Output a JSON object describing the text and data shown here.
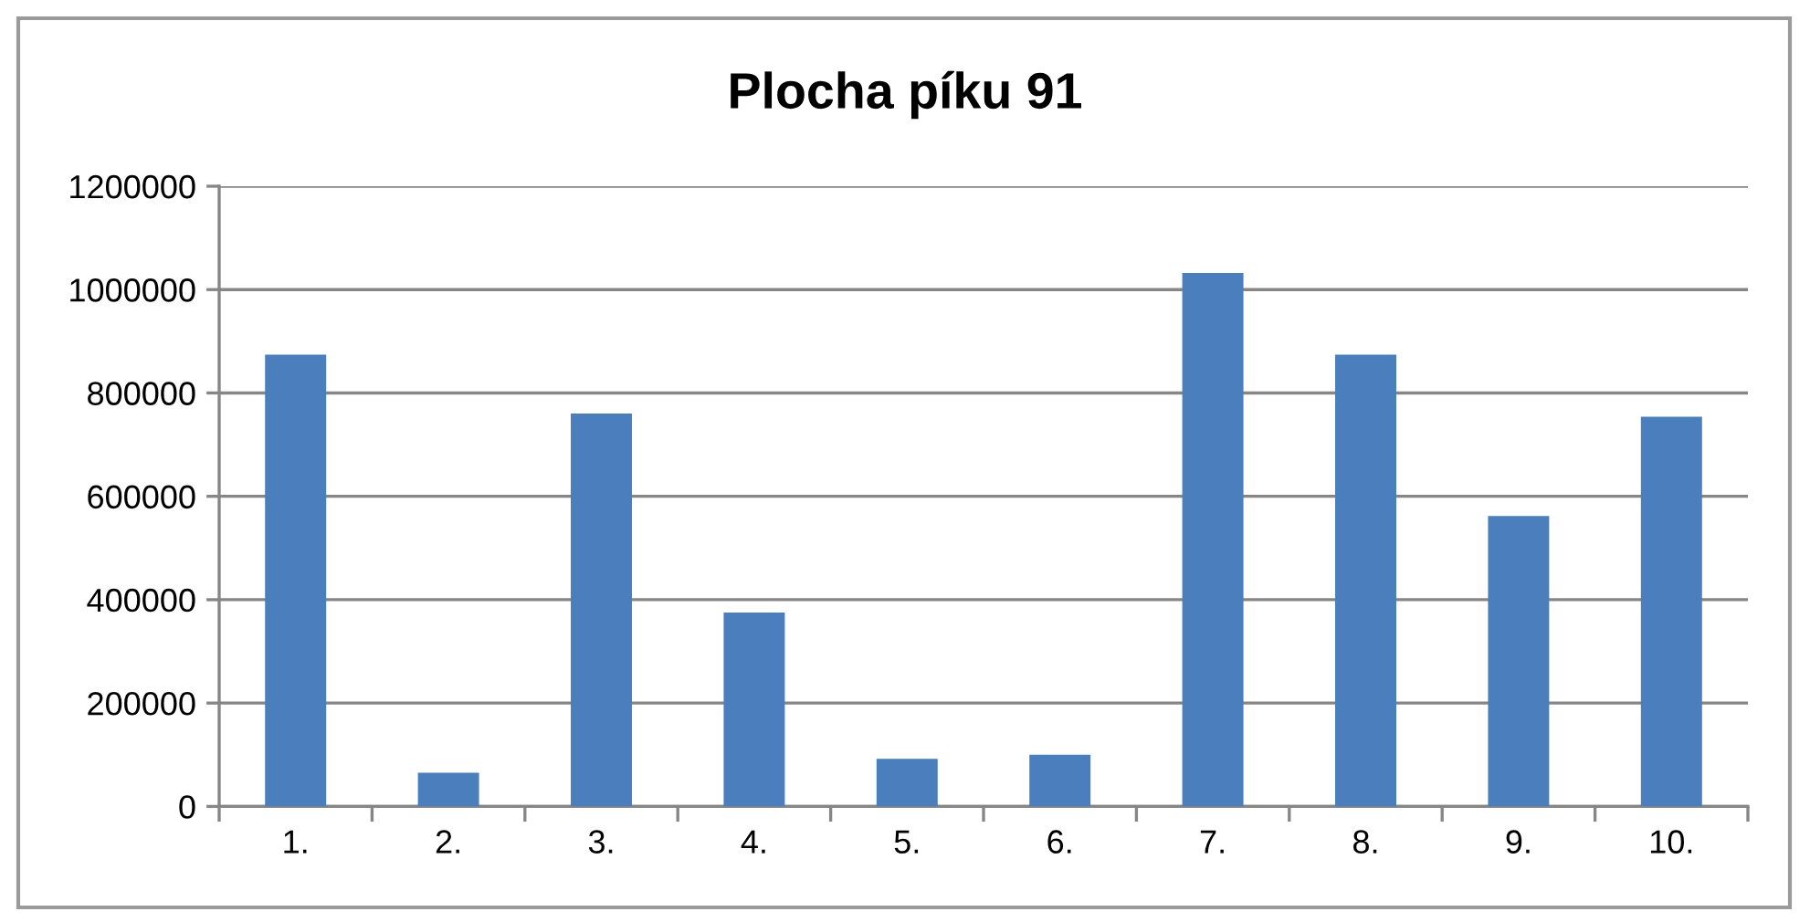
{
  "chart_data": {
    "type": "bar",
    "title": "Plocha píku 91",
    "categories": [
      "1.",
      "2.",
      "3.",
      "4.",
      "5.",
      "6.",
      "7.",
      "8.",
      "9.",
      "10."
    ],
    "values": [
      874000,
      65000,
      760000,
      375000,
      92000,
      100000,
      1032000,
      874000,
      562000,
      754000
    ],
    "color": "#4a7ebc",
    "ylim": [
      0,
      1200000
    ],
    "yticks": [
      0,
      200000,
      400000,
      600000,
      800000,
      1000000,
      1200000
    ],
    "grid": "y",
    "legend": false
  }
}
